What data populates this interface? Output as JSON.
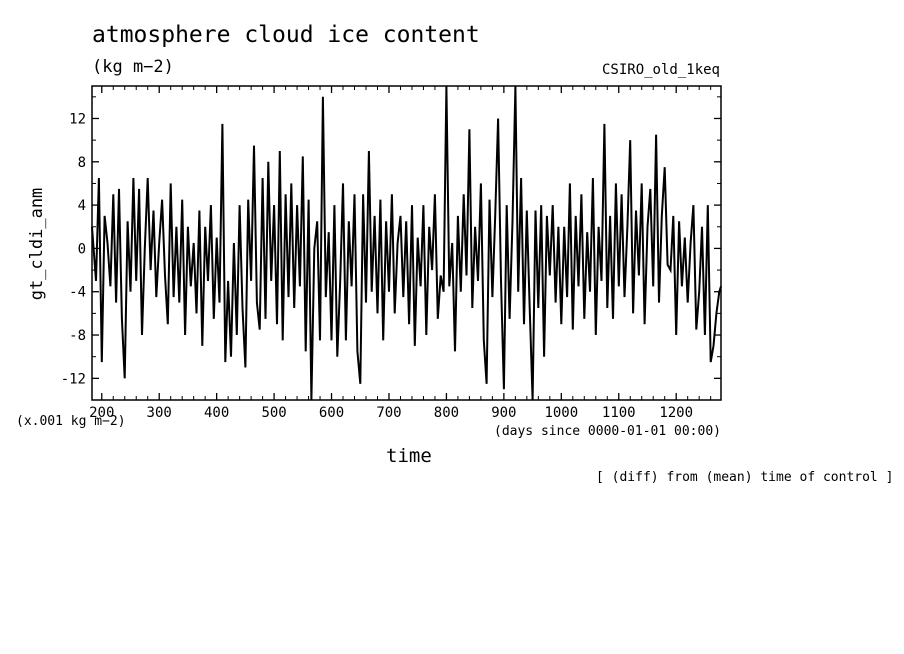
{
  "header": {
    "title": "atmosphere cloud ice content",
    "units": "(kg m−2)",
    "run_name": "CSIRO_old_1keq"
  },
  "footer": {
    "scale_note": "(x.001 kg m−2)",
    "x_units": "(days since 0000-01-01 00:00)",
    "note": "[ (diff) from (mean) time of control ]"
  },
  "chart_data": {
    "type": "line",
    "title": "atmosphere cloud ice content",
    "xlabel": "time",
    "ylabel": "gt_cldi_anm",
    "xlim": [
      183,
      1278
    ],
    "ylim": [
      -14,
      15
    ],
    "xticks": [
      200,
      300,
      400,
      500,
      600,
      700,
      800,
      900,
      1000,
      1100,
      1200
    ],
    "yticks": [
      -12,
      -8,
      -4,
      0,
      4,
      8,
      12
    ],
    "line_color": "#000000",
    "grid": false,
    "series": [
      {
        "name": "",
        "x_start": 183,
        "x_step": 2.5,
        "y_seed_points": [
          [
            183,
            2.0
          ],
          [
            190,
            -3.0
          ],
          [
            195,
            6.5
          ],
          [
            200,
            -10.5
          ],
          [
            205,
            3.0
          ],
          [
            210,
            0.5
          ],
          [
            215,
            -3.5
          ],
          [
            220,
            5.0
          ],
          [
            225,
            -5.0
          ],
          [
            230,
            5.5
          ],
          [
            235,
            -6.5
          ],
          [
            240,
            -12.0
          ],
          [
            245,
            2.5
          ],
          [
            250,
            -4.0
          ],
          [
            255,
            6.5
          ],
          [
            260,
            -3.0
          ],
          [
            265,
            5.5
          ],
          [
            270,
            -8.0
          ],
          [
            275,
            0.0
          ],
          [
            280,
            6.5
          ],
          [
            285,
            -2.0
          ],
          [
            290,
            3.5
          ],
          [
            295,
            -4.5
          ],
          [
            300,
            0.5
          ],
          [
            305,
            4.5
          ],
          [
            310,
            -2.5
          ],
          [
            315,
            -7.0
          ],
          [
            320,
            6.0
          ],
          [
            325,
            -4.5
          ],
          [
            330,
            2.0
          ],
          [
            335,
            -5.0
          ],
          [
            340,
            4.5
          ],
          [
            345,
            -8.0
          ],
          [
            350,
            2.0
          ],
          [
            355,
            -3.5
          ],
          [
            360,
            0.5
          ],
          [
            365,
            -6.0
          ],
          [
            370,
            3.5
          ],
          [
            375,
            -9.0
          ],
          [
            380,
            2.0
          ],
          [
            385,
            -3.0
          ],
          [
            390,
            4.0
          ],
          [
            395,
            -6.5
          ],
          [
            400,
            1.0
          ],
          [
            405,
            -5.0
          ],
          [
            410,
            11.5
          ],
          [
            415,
            -10.5
          ],
          [
            420,
            -3.0
          ],
          [
            425,
            -10.0
          ],
          [
            430,
            0.5
          ],
          [
            435,
            -8.0
          ],
          [
            440,
            4.0
          ],
          [
            445,
            -5.5
          ],
          [
            450,
            -11.0
          ],
          [
            455,
            4.5
          ],
          [
            460,
            -3.0
          ],
          [
            465,
            9.5
          ],
          [
            470,
            -5.0
          ],
          [
            475,
            -7.5
          ],
          [
            480,
            6.5
          ],
          [
            485,
            -6.5
          ],
          [
            490,
            8.0
          ],
          [
            495,
            -3.0
          ],
          [
            500,
            4.0
          ],
          [
            505,
            -7.0
          ],
          [
            510,
            9.0
          ],
          [
            515,
            -8.5
          ],
          [
            520,
            5.0
          ],
          [
            525,
            -4.5
          ],
          [
            530,
            6.0
          ],
          [
            535,
            -5.5
          ],
          [
            540,
            4.0
          ],
          [
            545,
            -3.5
          ],
          [
            550,
            8.5
          ],
          [
            555,
            -9.5
          ],
          [
            560,
            4.5
          ],
          [
            565,
            -14.0
          ],
          [
            570,
            0.0
          ],
          [
            575,
            2.5
          ],
          [
            580,
            -8.5
          ],
          [
            585,
            14.0
          ],
          [
            590,
            -4.5
          ],
          [
            595,
            1.5
          ],
          [
            600,
            -8.5
          ],
          [
            605,
            4.0
          ],
          [
            610,
            -10.0
          ],
          [
            615,
            -3.0
          ],
          [
            620,
            6.0
          ],
          [
            625,
            -8.5
          ],
          [
            630,
            2.5
          ],
          [
            635,
            -3.5
          ],
          [
            640,
            5.0
          ],
          [
            645,
            -9.5
          ],
          [
            650,
            -12.5
          ],
          [
            655,
            5.0
          ],
          [
            660,
            -5.0
          ],
          [
            665,
            9.0
          ],
          [
            670,
            -4.0
          ],
          [
            675,
            3.0
          ],
          [
            680,
            -6.0
          ],
          [
            685,
            4.5
          ],
          [
            690,
            -8.5
          ],
          [
            695,
            2.5
          ],
          [
            700,
            -4.0
          ],
          [
            705,
            5.0
          ],
          [
            710,
            -6.0
          ],
          [
            715,
            0.5
          ],
          [
            720,
            3.0
          ],
          [
            725,
            -4.5
          ],
          [
            730,
            2.5
          ],
          [
            735,
            -7.0
          ],
          [
            740,
            4.0
          ],
          [
            745,
            -9.0
          ],
          [
            750,
            1.0
          ],
          [
            755,
            -3.5
          ],
          [
            760,
            4.0
          ],
          [
            765,
            -8.0
          ],
          [
            770,
            2.0
          ],
          [
            775,
            -2.0
          ],
          [
            780,
            5.0
          ],
          [
            785,
            -6.5
          ],
          [
            790,
            -2.5
          ],
          [
            795,
            -4.0
          ],
          [
            800,
            15.0
          ],
          [
            805,
            -3.5
          ],
          [
            810,
            0.5
          ],
          [
            815,
            -9.5
          ],
          [
            820,
            3.0
          ],
          [
            825,
            -4.0
          ],
          [
            830,
            5.0
          ],
          [
            835,
            -2.5
          ],
          [
            840,
            11.0
          ],
          [
            845,
            -5.5
          ],
          [
            850,
            2.0
          ],
          [
            855,
            -3.0
          ],
          [
            860,
            6.0
          ],
          [
            865,
            -8.5
          ],
          [
            870,
            -12.5
          ],
          [
            875,
            4.5
          ],
          [
            880,
            -4.5
          ],
          [
            885,
            3.0
          ],
          [
            890,
            12.0
          ],
          [
            895,
            -3.0
          ],
          [
            900,
            -13.0
          ],
          [
            905,
            4.0
          ],
          [
            910,
            -6.5
          ],
          [
            915,
            2.5
          ],
          [
            920,
            15.0
          ],
          [
            925,
            -4.0
          ],
          [
            930,
            6.5
          ],
          [
            935,
            -7.0
          ],
          [
            940,
            3.5
          ],
          [
            945,
            -5.5
          ],
          [
            950,
            -14.0
          ],
          [
            955,
            3.5
          ],
          [
            960,
            -5.5
          ],
          [
            965,
            4.0
          ],
          [
            970,
            -10.0
          ],
          [
            975,
            3.0
          ],
          [
            980,
            -2.5
          ],
          [
            985,
            4.0
          ],
          [
            990,
            -5.0
          ],
          [
            995,
            2.0
          ],
          [
            1000,
            -7.0
          ],
          [
            1005,
            2.0
          ],
          [
            1010,
            -4.5
          ],
          [
            1015,
            6.0
          ],
          [
            1020,
            -7.5
          ],
          [
            1025,
            3.0
          ],
          [
            1030,
            -3.5
          ],
          [
            1035,
            5.0
          ],
          [
            1040,
            -6.5
          ],
          [
            1045,
            1.5
          ],
          [
            1050,
            -4.0
          ],
          [
            1055,
            6.5
          ],
          [
            1060,
            -8.0
          ],
          [
            1065,
            2.0
          ],
          [
            1070,
            -3.0
          ],
          [
            1075,
            11.5
          ],
          [
            1080,
            -5.5
          ],
          [
            1085,
            3.0
          ],
          [
            1090,
            -6.5
          ],
          [
            1095,
            6.0
          ],
          [
            1100,
            -3.5
          ],
          [
            1105,
            5.0
          ],
          [
            1110,
            -4.5
          ],
          [
            1115,
            2.0
          ],
          [
            1120,
            10.0
          ],
          [
            1125,
            -6.0
          ],
          [
            1130,
            3.5
          ],
          [
            1135,
            -2.5
          ],
          [
            1140,
            6.0
          ],
          [
            1145,
            -7.0
          ],
          [
            1150,
            2.0
          ],
          [
            1155,
            5.5
          ],
          [
            1160,
            -3.5
          ],
          [
            1165,
            10.5
          ],
          [
            1170,
            -5.0
          ],
          [
            1175,
            3.0
          ],
          [
            1180,
            7.5
          ],
          [
            1185,
            -1.5
          ],
          [
            1190,
            -2.0
          ],
          [
            1195,
            3.0
          ],
          [
            1200,
            -8.0
          ],
          [
            1205,
            2.5
          ],
          [
            1210,
            -3.5
          ],
          [
            1215,
            1.0
          ],
          [
            1220,
            -5.0
          ],
          [
            1225,
            0.5
          ],
          [
            1230,
            4.0
          ],
          [
            1235,
            -7.5
          ],
          [
            1240,
            -4.0
          ],
          [
            1245,
            2.0
          ],
          [
            1250,
            -8.0
          ],
          [
            1255,
            4.0
          ],
          [
            1260,
            -10.5
          ],
          [
            1265,
            -9.0
          ],
          [
            1270,
            -6.0
          ],
          [
            1275,
            -4.0
          ],
          [
            1278,
            -3.5
          ]
        ]
      }
    ]
  }
}
